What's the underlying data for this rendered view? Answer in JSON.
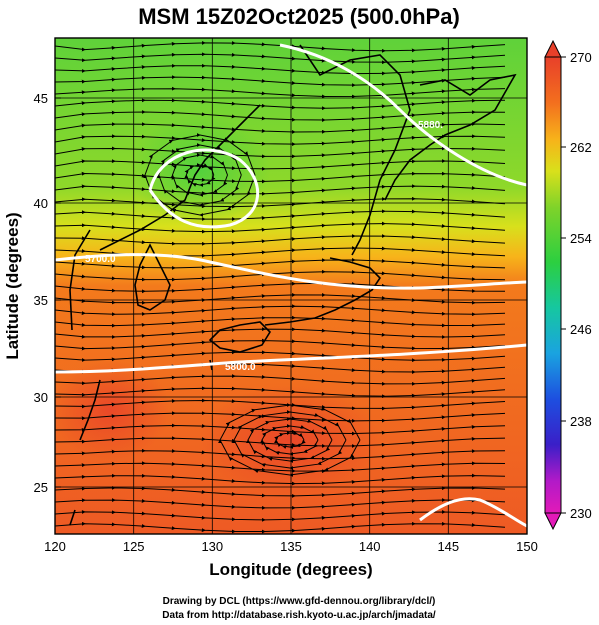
{
  "title": "MSM 15Z02Oct2025 (500.0hPa)",
  "xlabel": "Longitude (degrees)",
  "ylabel": "Latitude  (degrees)",
  "x_ticks": [
    "120",
    "125",
    "130",
    "135",
    "140",
    "145",
    "150"
  ],
  "y_ticks": [
    "25",
    "30",
    "35",
    "40",
    "45"
  ],
  "colorbar": {
    "ticks": [
      "270",
      "262",
      "254",
      "246",
      "238",
      "230"
    ],
    "min": 230,
    "max": 270,
    "colors_top_to_bottom": [
      "#e8402a",
      "#f36f1e",
      "#f7b21a",
      "#d9e01b",
      "#7fd32a",
      "#2ccf40",
      "#16c7a0",
      "#1aa3e0",
      "#1d4fe0",
      "#3a1fc8",
      "#b21ac8",
      "#e21ab8"
    ]
  },
  "contour_labels": [
    "5880.",
    "5800.0",
    "5700.0"
  ],
  "credits": [
    "Drawing by DCL (https://www.gfd-dennou.org/library/dcl/)",
    "Data from http://database.rish.kyoto-u.ac.jp/arch/jmadata/"
  ],
  "chart_data": {
    "type": "heatmap",
    "title": "MSM 15Z02Oct2025 (500.0hPa)",
    "xlabel": "Longitude (degrees)",
    "ylabel": "Latitude  (degrees)",
    "xlim": [
      120,
      150
    ],
    "ylim": [
      22.5,
      47.6
    ],
    "field_range": [
      230,
      270
    ],
    "features": [
      "temperature shading",
      "geopotential height contours",
      "wind streamlines",
      "coastlines"
    ]
  }
}
